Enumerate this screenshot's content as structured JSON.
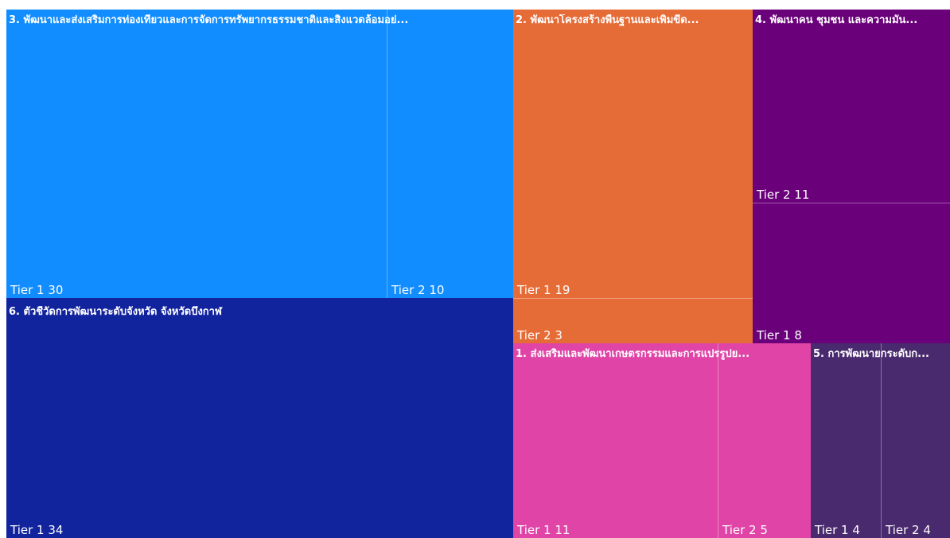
{
  "chart_data": {
    "type": "treemap",
    "groups": [
      {
        "name": "6. ตัวชี้วัดการพัฒนาระดับจังหวัด จังหวัดบึงกาฬ",
        "color": "#12239E",
        "children": [
          {
            "label": "Tier 1 34",
            "tier": "Tier 1",
            "value": 34
          }
        ]
      },
      {
        "name": "3. พัฒนาและส่งเสริมการท่องเที่ยวและการจัดการทรัพยากรธรรมชาติและสิ่งแวดล้อมอย่...",
        "color": "#118DFF",
        "children": [
          {
            "label": "Tier 1 30",
            "tier": "Tier 1",
            "value": 30
          },
          {
            "label": "Tier 2 10",
            "tier": "Tier 2",
            "value": 10
          }
        ]
      },
      {
        "name": "2. พัฒนาโครงสร้างพื้นฐานและเพิ่มขีด...",
        "color": "#E66C37",
        "children": [
          {
            "label": "Tier 1 19",
            "tier": "Tier 1",
            "value": 19
          },
          {
            "label": "Tier 2 3",
            "tier": "Tier 2",
            "value": 3
          }
        ]
      },
      {
        "name": "4. พัฒนาคน ชุมชน และความมั่น...",
        "color": "#6B007B",
        "children": [
          {
            "label": "Tier 2 11",
            "tier": "Tier 2",
            "value": 11
          },
          {
            "label": "Tier 1 8",
            "tier": "Tier 1",
            "value": 8
          }
        ]
      },
      {
        "name": "1. ส่งเสริมและพัฒนาเกษตรกรรมและการแปรรูปย...",
        "color": "#E044A7",
        "children": [
          {
            "label": "Tier 1 11",
            "tier": "Tier 1",
            "value": 11
          },
          {
            "label": "Tier 2 5",
            "tier": "Tier 2",
            "value": 5
          }
        ]
      },
      {
        "name": "5. การพัฒนายกระดับก...",
        "color": "#4A2A6E",
        "children": [
          {
            "label": "Tier 1 4",
            "tier": "Tier 1",
            "value": 4
          },
          {
            "label": "Tier 2 4",
            "tier": "Tier 2",
            "value": 4
          }
        ]
      }
    ]
  }
}
